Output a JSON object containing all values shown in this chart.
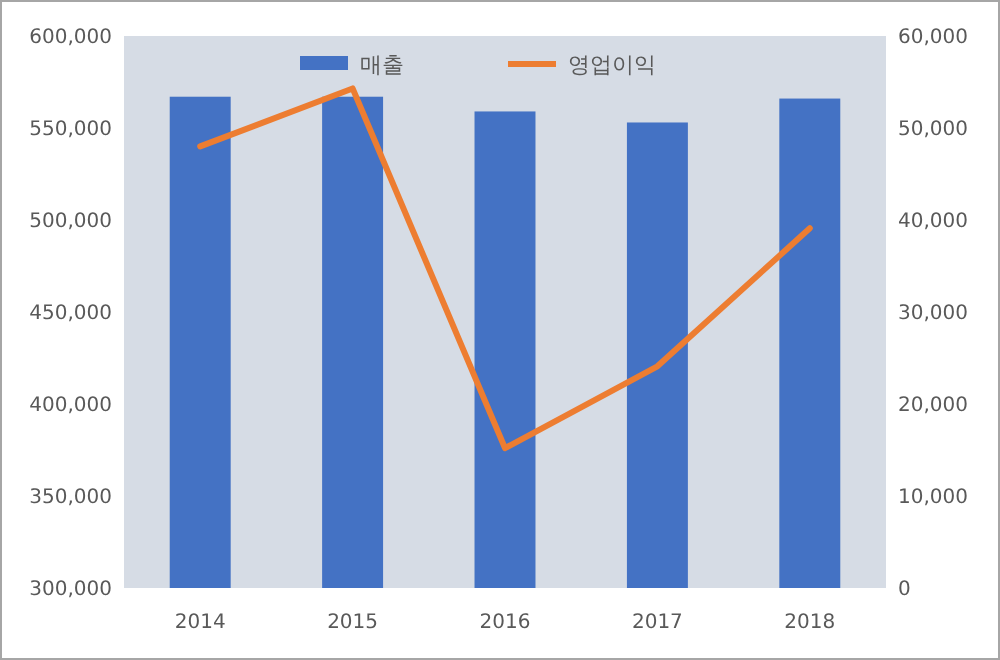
{
  "chart_data": {
    "type": "bar",
    "categories": [
      "2014",
      "2015",
      "2016",
      "2017",
      "2018"
    ],
    "series": [
      {
        "name": "매출",
        "color": "#4472c4",
        "values": [
          567000,
          567000,
          559000,
          553000,
          566000
        ]
      },
      {
        "name": "영업이익",
        "type": "line",
        "axis": "y2",
        "color": "#ed7d31",
        "values": [
          48000,
          54300,
          15200,
          24100,
          39100
        ]
      }
    ],
    "ylim": [
      300000,
      600000
    ],
    "yticks": [
      {
        "value": 300000,
        "label": "300,000"
      },
      {
        "value": 350000,
        "label": "350,000"
      },
      {
        "value": 400000,
        "label": "400,000"
      },
      {
        "value": 450000,
        "label": "450,000"
      },
      {
        "value": 500000,
        "label": "500,000"
      },
      {
        "value": 550000,
        "label": "550,000"
      },
      {
        "value": 600000,
        "label": "600,000"
      }
    ],
    "y2lim": [
      0,
      60000
    ],
    "y2ticks": [
      0,
      {
        "value": 10000,
        "label": "10,000"
      },
      {
        "value": 20000,
        "label": "20,000"
      },
      {
        "value": 30000,
        "label": "30,000"
      },
      {
        "value": 40000,
        "label": "40,000"
      },
      {
        "value": 50000,
        "label": "50,000"
      },
      {
        "value": 60000,
        "label": "60,000"
      }
    ],
    "grid": false,
    "legend": "top",
    "marker": "none",
    "line_style": "solid"
  }
}
